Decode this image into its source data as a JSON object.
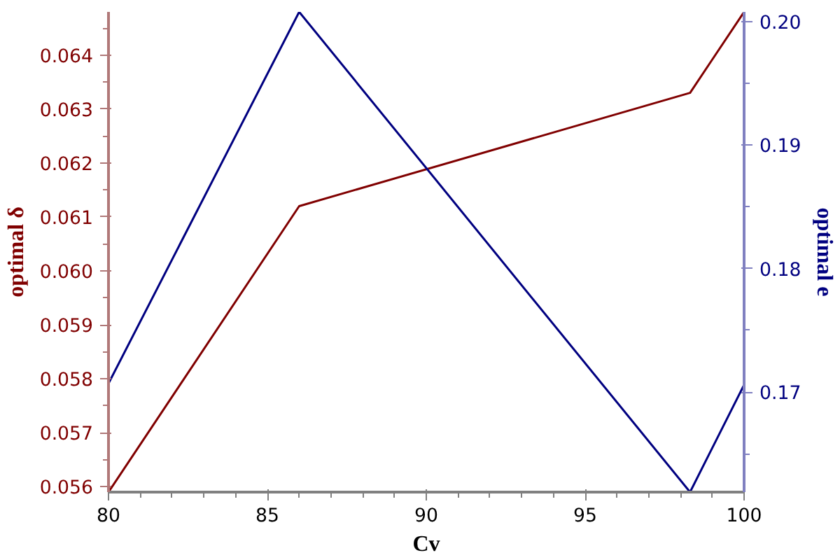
{
  "chart_data": {
    "type": "line",
    "xlabel": "Cv",
    "ylabel": "optimal δ",
    "y2label": "optimal e",
    "xlim": [
      80,
      100
    ],
    "xticks": [
      80,
      85,
      90,
      95,
      100
    ],
    "ylim": [
      0.0559,
      0.0648
    ],
    "yticks": [
      0.056,
      0.057,
      0.058,
      0.059,
      {
        "value": 0.06,
        "label": "0.060"
      },
      0.061,
      0.062,
      0.063,
      0.064
    ],
    "y2lim": [
      0.1619,
      0.2008
    ],
    "y2ticks": [
      0.17,
      0.18,
      0.19,
      {
        "value": 0.2,
        "label": "0.20"
      }
    ],
    "series": [
      {
        "color": "#800000",
        "x": [
          80,
          86,
          98.3,
          100
        ],
        "values": [
          0.0559,
          0.0612,
          0.0633,
          0.0648
        ]
      },
      {
        "color": "#000080",
        "axis": "y2",
        "x": [
          80,
          86,
          98.3,
          100
        ],
        "values": [
          0.1707,
          0.2008,
          0.1619,
          0.1706
        ]
      }
    ]
  }
}
